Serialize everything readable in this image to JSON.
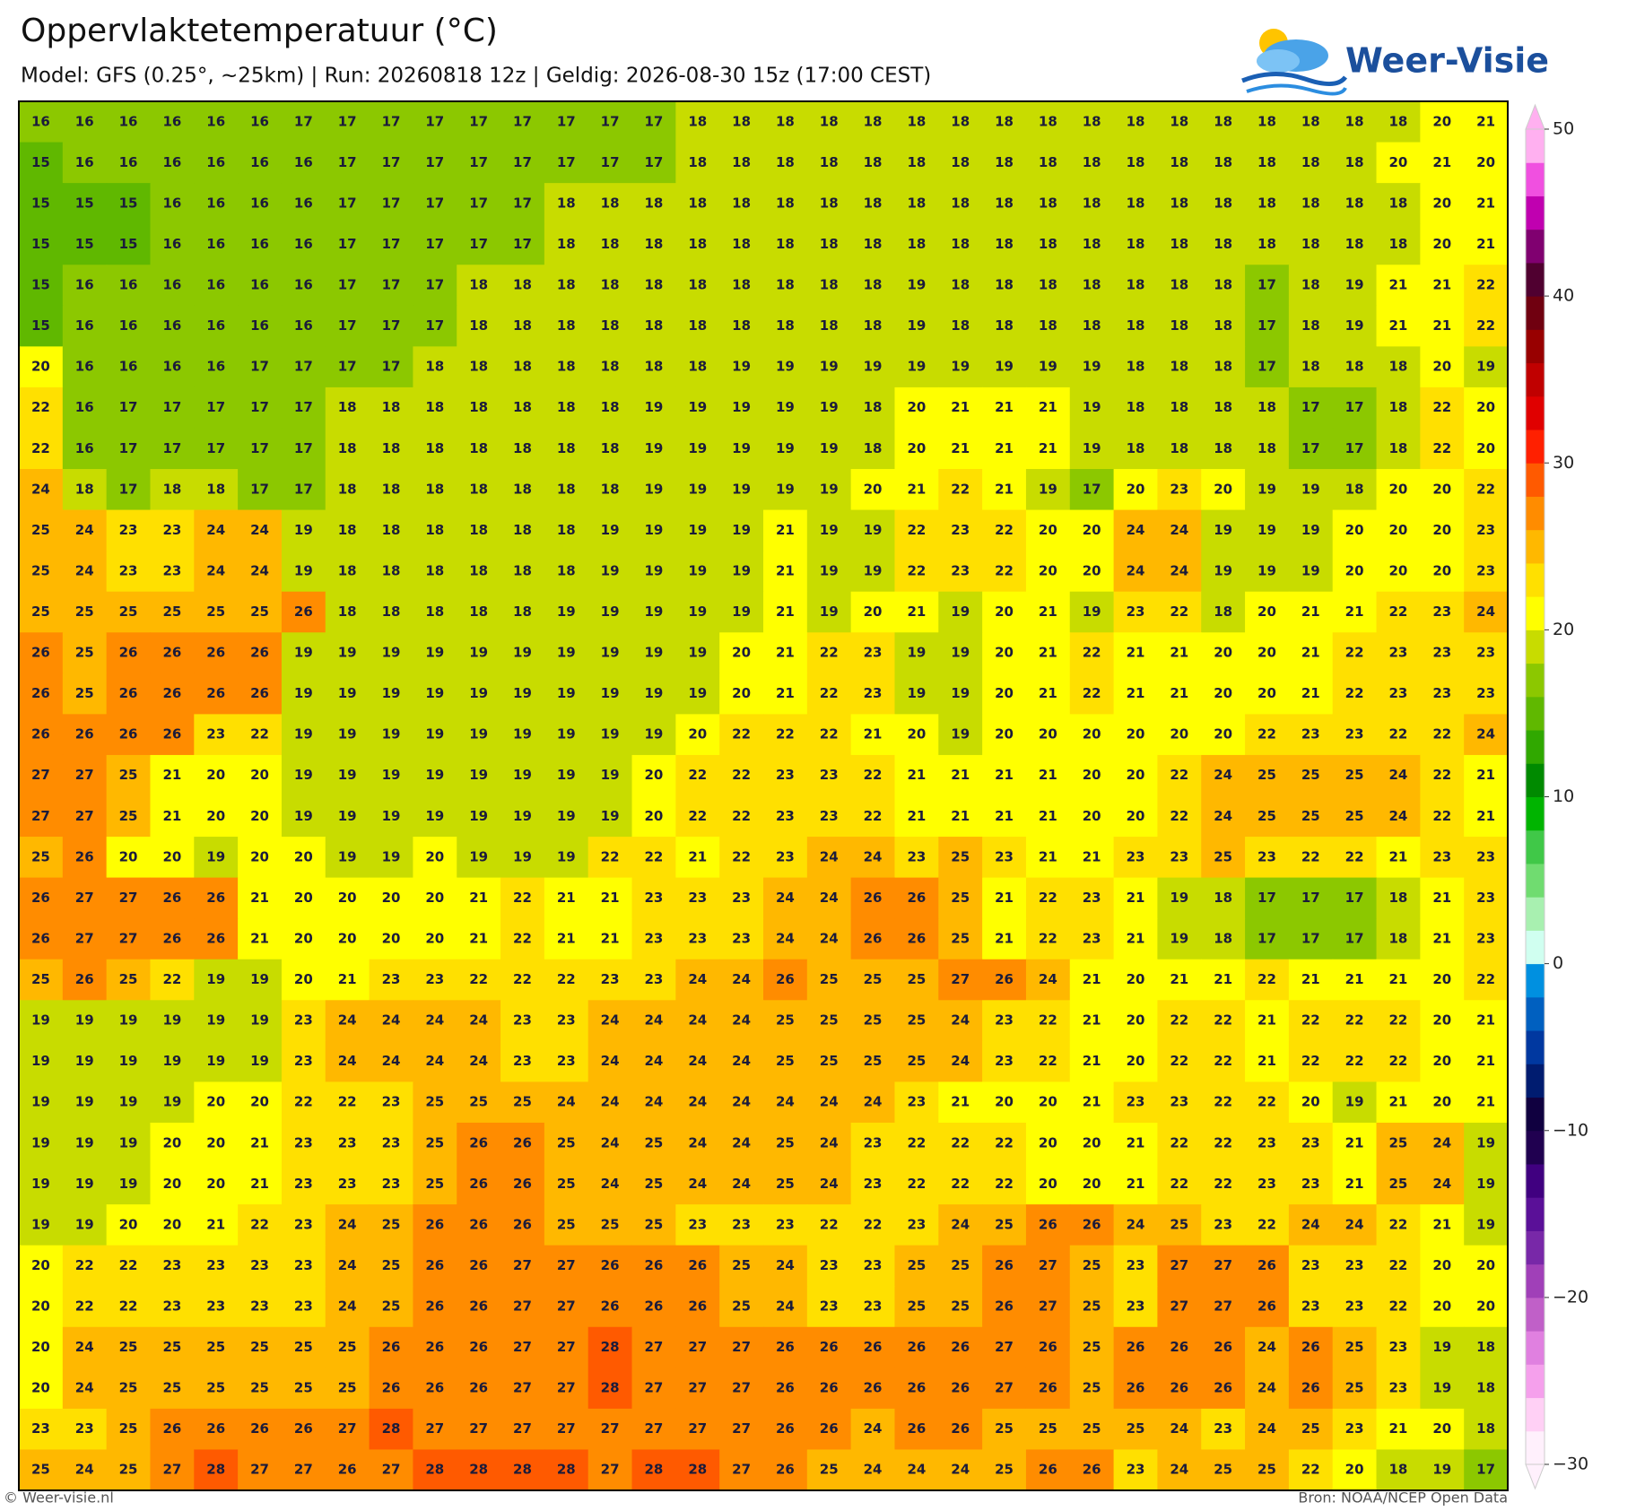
{
  "chart_data": {
    "type": "heatmap",
    "title": "Oppervlaktetemperatuur (°C)",
    "subtitle": "Model: GFS (0.25°, ~25km)  |  Run: 20260818 12z  |  Geldig: 2026-08-30 15z (17:00 CEST)",
    "values": [
      [
        16,
        16,
        16,
        16,
        16,
        16,
        17,
        17,
        17,
        17,
        17,
        17,
        17,
        17,
        17,
        18,
        18,
        18,
        18,
        18,
        18,
        18,
        18,
        18,
        18,
        18,
        18,
        18,
        18,
        18,
        18,
        18,
        20,
        21
      ],
      [
        15,
        16,
        16,
        16,
        16,
        16,
        16,
        17,
        17,
        17,
        17,
        17,
        17,
        17,
        17,
        18,
        18,
        18,
        18,
        18,
        18,
        18,
        18,
        18,
        18,
        18,
        18,
        18,
        18,
        18,
        18,
        20,
        21,
        20
      ],
      [
        15,
        15,
        15,
        16,
        16,
        16,
        16,
        17,
        17,
        17,
        17,
        17,
        18,
        18,
        18,
        18,
        18,
        18,
        18,
        18,
        18,
        18,
        18,
        18,
        18,
        18,
        18,
        18,
        18,
        18,
        18,
        18,
        20,
        21
      ],
      [
        15,
        15,
        15,
        16,
        16,
        16,
        16,
        17,
        17,
        17,
        17,
        17,
        18,
        18,
        18,
        18,
        18,
        18,
        18,
        18,
        18,
        18,
        18,
        18,
        18,
        18,
        18,
        18,
        18,
        18,
        18,
        18,
        20,
        21
      ],
      [
        15,
        16,
        16,
        16,
        16,
        16,
        16,
        17,
        17,
        17,
        18,
        18,
        18,
        18,
        18,
        18,
        18,
        18,
        18,
        18,
        19,
        18,
        18,
        18,
        18,
        18,
        18,
        18,
        17,
        18,
        19,
        21,
        21,
        22
      ],
      [
        15,
        16,
        16,
        16,
        16,
        16,
        16,
        17,
        17,
        17,
        18,
        18,
        18,
        18,
        18,
        18,
        18,
        18,
        18,
        18,
        19,
        18,
        18,
        18,
        18,
        18,
        18,
        18,
        17,
        18,
        19,
        21,
        21,
        22
      ],
      [
        20,
        16,
        16,
        16,
        16,
        17,
        17,
        17,
        17,
        18,
        18,
        18,
        18,
        18,
        18,
        18,
        19,
        19,
        19,
        19,
        19,
        19,
        19,
        19,
        19,
        18,
        18,
        18,
        17,
        18,
        18,
        18,
        20,
        19
      ],
      [
        22,
        16,
        17,
        17,
        17,
        17,
        17,
        18,
        18,
        18,
        18,
        18,
        18,
        18,
        19,
        19,
        19,
        19,
        19,
        18,
        20,
        21,
        21,
        21,
        19,
        18,
        18,
        18,
        18,
        17,
        17,
        18,
        22,
        20
      ],
      [
        22,
        16,
        17,
        17,
        17,
        17,
        17,
        18,
        18,
        18,
        18,
        18,
        18,
        18,
        19,
        19,
        19,
        19,
        19,
        18,
        20,
        21,
        21,
        21,
        19,
        18,
        18,
        18,
        18,
        17,
        17,
        18,
        22,
        20
      ],
      [
        24,
        18,
        17,
        18,
        18,
        17,
        17,
        18,
        18,
        18,
        18,
        18,
        18,
        18,
        19,
        19,
        19,
        19,
        19,
        20,
        21,
        22,
        21,
        19,
        17,
        20,
        23,
        20,
        19,
        19,
        18,
        20,
        20,
        22
      ],
      [
        25,
        24,
        23,
        23,
        24,
        24,
        19,
        18,
        18,
        18,
        18,
        18,
        18,
        19,
        19,
        19,
        19,
        21,
        19,
        19,
        22,
        23,
        22,
        20,
        20,
        24,
        24,
        19,
        19,
        19,
        20,
        20,
        20,
        23
      ],
      [
        25,
        24,
        23,
        23,
        24,
        24,
        19,
        18,
        18,
        18,
        18,
        18,
        18,
        19,
        19,
        19,
        19,
        21,
        19,
        19,
        22,
        23,
        22,
        20,
        20,
        24,
        24,
        19,
        19,
        19,
        20,
        20,
        20,
        23
      ],
      [
        25,
        25,
        25,
        25,
        25,
        25,
        26,
        18,
        18,
        18,
        18,
        18,
        19,
        19,
        19,
        19,
        19,
        21,
        19,
        20,
        21,
        19,
        20,
        21,
        19,
        23,
        22,
        18,
        20,
        21,
        21,
        22,
        23,
        24
      ],
      [
        26,
        25,
        26,
        26,
        26,
        26,
        19,
        19,
        19,
        19,
        19,
        19,
        19,
        19,
        19,
        19,
        20,
        21,
        22,
        23,
        19,
        19,
        20,
        21,
        22,
        21,
        21,
        20,
        20,
        21,
        22,
        23,
        23,
        23
      ],
      [
        26,
        25,
        26,
        26,
        26,
        26,
        19,
        19,
        19,
        19,
        19,
        19,
        19,
        19,
        19,
        19,
        20,
        21,
        22,
        23,
        19,
        19,
        20,
        21,
        22,
        21,
        21,
        20,
        20,
        21,
        22,
        23,
        23,
        23
      ],
      [
        26,
        26,
        26,
        26,
        23,
        22,
        19,
        19,
        19,
        19,
        19,
        19,
        19,
        19,
        19,
        20,
        22,
        22,
        22,
        21,
        20,
        19,
        20,
        20,
        20,
        20,
        20,
        20,
        22,
        23,
        23,
        22,
        22,
        24
      ],
      [
        27,
        27,
        25,
        21,
        20,
        20,
        19,
        19,
        19,
        19,
        19,
        19,
        19,
        19,
        20,
        22,
        22,
        23,
        23,
        22,
        21,
        21,
        21,
        21,
        20,
        20,
        22,
        24,
        25,
        25,
        25,
        24,
        22,
        21
      ],
      [
        27,
        27,
        25,
        21,
        20,
        20,
        19,
        19,
        19,
        19,
        19,
        19,
        19,
        19,
        20,
        22,
        22,
        23,
        23,
        22,
        21,
        21,
        21,
        21,
        20,
        20,
        22,
        24,
        25,
        25,
        25,
        24,
        22,
        21
      ],
      [
        25,
        26,
        20,
        20,
        19,
        20,
        20,
        19,
        19,
        20,
        19,
        19,
        19,
        22,
        22,
        21,
        22,
        23,
        24,
        24,
        23,
        25,
        23,
        21,
        21,
        23,
        23,
        25,
        23,
        22,
        22,
        21,
        23,
        23
      ],
      [
        26,
        27,
        27,
        26,
        26,
        21,
        20,
        20,
        20,
        20,
        21,
        22,
        21,
        21,
        23,
        23,
        23,
        24,
        24,
        26,
        26,
        25,
        21,
        22,
        23,
        21,
        19,
        18,
        17,
        17,
        17,
        18,
        21,
        23
      ],
      [
        26,
        27,
        27,
        26,
        26,
        21,
        20,
        20,
        20,
        20,
        21,
        22,
        21,
        21,
        23,
        23,
        23,
        24,
        24,
        26,
        26,
        25,
        21,
        22,
        23,
        21,
        19,
        18,
        17,
        17,
        17,
        18,
        21,
        23
      ],
      [
        25,
        26,
        25,
        22,
        19,
        19,
        20,
        21,
        23,
        23,
        22,
        22,
        22,
        23,
        23,
        24,
        24,
        26,
        25,
        25,
        25,
        27,
        26,
        24,
        21,
        20,
        21,
        21,
        22,
        21,
        21,
        21,
        20,
        22
      ],
      [
        19,
        19,
        19,
        19,
        19,
        19,
        23,
        24,
        24,
        24,
        24,
        23,
        23,
        24,
        24,
        24,
        24,
        25,
        25,
        25,
        25,
        24,
        23,
        22,
        21,
        20,
        22,
        22,
        21,
        22,
        22,
        22,
        20,
        21
      ],
      [
        19,
        19,
        19,
        19,
        19,
        19,
        23,
        24,
        24,
        24,
        24,
        23,
        23,
        24,
        24,
        24,
        24,
        25,
        25,
        25,
        25,
        24,
        23,
        22,
        21,
        20,
        22,
        22,
        21,
        22,
        22,
        22,
        20,
        21
      ],
      [
        19,
        19,
        19,
        19,
        20,
        20,
        22,
        22,
        23,
        25,
        25,
        25,
        24,
        24,
        24,
        24,
        24,
        24,
        24,
        24,
        23,
        21,
        20,
        20,
        21,
        23,
        23,
        22,
        22,
        20,
        19,
        21,
        20,
        21
      ],
      [
        19,
        19,
        19,
        20,
        20,
        21,
        23,
        23,
        23,
        25,
        26,
        26,
        25,
        24,
        25,
        24,
        24,
        25,
        24,
        23,
        22,
        22,
        22,
        20,
        20,
        21,
        22,
        22,
        23,
        23,
        21,
        25,
        24,
        19
      ],
      [
        19,
        19,
        19,
        20,
        20,
        21,
        23,
        23,
        23,
        25,
        26,
        26,
        25,
        24,
        25,
        24,
        24,
        25,
        24,
        23,
        22,
        22,
        22,
        20,
        20,
        21,
        22,
        22,
        23,
        23,
        21,
        25,
        24,
        19
      ],
      [
        19,
        19,
        20,
        20,
        21,
        22,
        23,
        24,
        25,
        26,
        26,
        26,
        25,
        25,
        25,
        23,
        23,
        23,
        22,
        22,
        23,
        24,
        25,
        26,
        26,
        24,
        25,
        23,
        22,
        24,
        24,
        22,
        21,
        19
      ],
      [
        20,
        22,
        22,
        23,
        23,
        23,
        23,
        24,
        25,
        26,
        26,
        27,
        27,
        26,
        26,
        26,
        25,
        24,
        23,
        23,
        25,
        25,
        26,
        27,
        25,
        23,
        27,
        27,
        26,
        23,
        23,
        22,
        20,
        20
      ],
      [
        20,
        22,
        22,
        23,
        23,
        23,
        23,
        24,
        25,
        26,
        26,
        27,
        27,
        26,
        26,
        26,
        25,
        24,
        23,
        23,
        25,
        25,
        26,
        27,
        25,
        23,
        27,
        27,
        26,
        23,
        23,
        22,
        20,
        20
      ],
      [
        20,
        24,
        25,
        25,
        25,
        25,
        25,
        25,
        26,
        26,
        26,
        27,
        27,
        28,
        27,
        27,
        27,
        26,
        26,
        26,
        26,
        26,
        27,
        26,
        25,
        26,
        26,
        26,
        24,
        26,
        25,
        23,
        19,
        18
      ],
      [
        20,
        24,
        25,
        25,
        25,
        25,
        25,
        25,
        26,
        26,
        26,
        27,
        27,
        28,
        27,
        27,
        27,
        26,
        26,
        26,
        26,
        26,
        27,
        26,
        25,
        26,
        26,
        26,
        24,
        26,
        25,
        23,
        19,
        18
      ],
      [
        23,
        23,
        25,
        26,
        26,
        26,
        26,
        27,
        28,
        27,
        27,
        27,
        27,
        27,
        27,
        27,
        27,
        26,
        26,
        24,
        26,
        26,
        25,
        25,
        25,
        25,
        24,
        23,
        24,
        25,
        23,
        21,
        20,
        18
      ],
      [
        25,
        24,
        25,
        27,
        28,
        27,
        27,
        26,
        27,
        28,
        28,
        28,
        28,
        27,
        28,
        28,
        27,
        26,
        25,
        24,
        24,
        24,
        25,
        26,
        26,
        23,
        24,
        25,
        25,
        22,
        20,
        18,
        19,
        17
      ]
    ],
    "colorbar": {
      "lim": [
        -30,
        50
      ],
      "ticks": [
        50,
        40,
        30,
        20,
        10,
        0,
        {
          "value": -10,
          "label": "−10"
        },
        {
          "value": -20,
          "label": "−20"
        },
        {
          "value": -30,
          "label": "−30"
        }
      ],
      "colors": [
        "#fff0fc",
        "#ffd0f5",
        "#f5a0ec",
        "#e080e0",
        "#c060c8",
        "#a040b8",
        "#7828a8",
        "#5a1098",
        "#400080",
        "#200050",
        "#100040",
        "#001c70",
        "#0038a0",
        "#0060c0",
        "#0090e0",
        "#d0fff0",
        "#a8f0b0",
        "#70dc70",
        "#40c848",
        "#00b400",
        "#008a00",
        "#30a800",
        "#60b800",
        "#8cc800",
        "#c8dc00",
        "#ffff00",
        "#ffe000",
        "#ffb800",
        "#ff8c00",
        "#ff5a00",
        "#ff2000",
        "#e00000",
        "#c00000",
        "#980000",
        "#700010",
        "#500030",
        "#800070",
        "#c000b0",
        "#f050e0",
        "#ffb0f0"
      ]
    }
  },
  "logo": "Weer-Visie",
  "footer": {
    "left": "© Weer-visie.nl",
    "right": "Bron: NOAA/NCEP Open Data"
  }
}
